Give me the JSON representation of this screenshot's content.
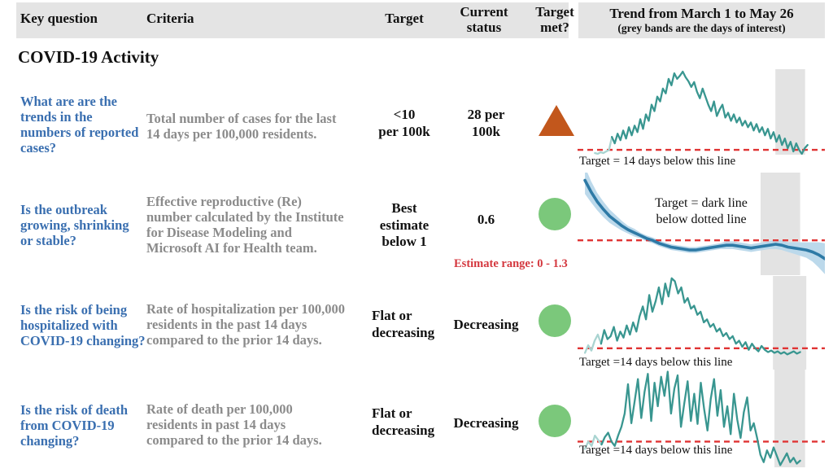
{
  "colors": {
    "header_bg": "#e4e4e4",
    "question_text": "#3a6fb0",
    "criteria_text": "#8b8b8b",
    "body_text": "#111111",
    "target_line_red": "#e03434",
    "estimate_range_red": "#d4373e",
    "trend_teal": "#399690",
    "trend_teal_faded": "#a9d4d1",
    "re_line_blue": "#2e7aa6",
    "re_band_blue": "#bcd9eb",
    "highlight_band_grey": "#e3e3e3",
    "met_green": "#7bc87b",
    "not_met_orange": "#c2571c"
  },
  "header": {
    "key_question": "Key question",
    "criteria": "Criteria",
    "target": "Target",
    "current_status": "Current\nstatus",
    "target_met": "Target\nmet?",
    "trend_title": "Trend from March 1 to May 26",
    "trend_subtitle": "(grey bands are the days of interest)"
  },
  "section_title": "COVID-19 Activity",
  "rows": [
    {
      "question": "What are are the\ntrends in the\nnumbers of reported\ncases?",
      "criteria": "Total number of cases for the last\n14 days per 100,000 residents.",
      "target": "<10\nper 100k",
      "status": "28 per\n100k",
      "target_met": false,
      "indicator": "orange-triangle-up"
    },
    {
      "question": "Is the outbreak\ngrowing, shrinking\nor stable?",
      "criteria": "Effective reproductive (Re)\nnumber calculated by the Institute\nfor Disease Modeling and\nMicrosoft AI for Health team.",
      "target": "Best\nestimate\nbelow 1",
      "status": "0.6",
      "status_note": "Estimate range: 0 - 1.3",
      "target_met": true,
      "indicator": "green-circle"
    },
    {
      "question": "Is the risk of being\nhospitalized with\nCOVID-19 changing?",
      "criteria": "Rate of hospitalization per 100,000\nresidents in the past 14 days\ncompared to the prior 14 days.",
      "target": "Flat or\ndecreasing",
      "status": "Decreasing",
      "target_met": true,
      "indicator": "green-circle"
    },
    {
      "question": "Is the risk of death\nfrom COVID-19\nchanging?",
      "criteria": "Rate of death per 100,000\nresidents in past 14 days\ncompared to the prior 14 days.",
      "target": "Flat or\ndecreasing",
      "status": "Decreasing",
      "target_met": true,
      "indicator": "green-circle"
    }
  ],
  "chart_data": [
    {
      "type": "line",
      "name": "reported_cases_trend",
      "caption": "Target = 14 days below this line",
      "x_range": [
        "March 1",
        "May 26"
      ],
      "target_line_value": 0,
      "units": "normalized (0 = red target line, 100 = chart max)",
      "ylim": [
        -6,
        100
      ],
      "x_start": 0.07,
      "x_end": 0.93,
      "highlight_band": [
        0.8,
        0.92
      ],
      "fade_points": 6,
      "line_color": "trend_teal",
      "fade_color": "trend_teal_faded",
      "stroke_width": 2.3,
      "series": [
        {
          "name": "cases_per_100k_last_14_days",
          "values": [
            -4,
            -5,
            -3,
            -4,
            -2,
            0,
            16,
            8,
            20,
            12,
            24,
            14,
            28,
            18,
            30,
            22,
            38,
            26,
            44,
            36,
            56,
            48,
            66,
            60,
            76,
            70,
            88,
            80,
            95,
            88,
            92,
            97,
            90,
            85,
            78,
            84,
            72,
            64,
            76,
            66,
            56,
            48,
            60,
            42,
            50,
            56,
            40,
            46,
            36,
            44,
            34,
            40,
            30,
            36,
            28,
            34,
            24,
            32,
            22,
            28,
            18,
            26,
            14,
            22,
            10,
            18,
            6,
            14,
            2,
            10,
            -2,
            8,
            0,
            -5,
            2,
            6
          ]
        }
      ]
    },
    {
      "type": "line",
      "name": "effective_reproduction_number_trend",
      "annotation": "Target = dark line\nbelow dotted line",
      "x_range": [
        "March 1",
        "May 26"
      ],
      "target_line_value": 0,
      "units": "normalized (0 = red dotted target line)",
      "ylim": [
        -36,
        70
      ],
      "x_start": 0.03,
      "x_end": 1.0,
      "highlight_band": [
        0.74,
        0.9
      ],
      "fade_points": 0,
      "line_color": "re_line_blue",
      "band_color": "re_band_blue",
      "stroke_width": 3.6,
      "series": [
        {
          "name": "re_best_estimate",
          "values": [
            62,
            50,
            40,
            32,
            25,
            20,
            15,
            11,
            8,
            5,
            2,
            0,
            -3,
            -5,
            -7,
            -8,
            -9,
            -10,
            -10,
            -9,
            -8,
            -7,
            -6,
            -5,
            -5,
            -6,
            -7,
            -8,
            -7,
            -6,
            -5,
            -4,
            -5,
            -7,
            -8,
            -9,
            -10,
            -12,
            -15,
            -19
          ]
        }
      ],
      "band_halfwidths": [
        14,
        11,
        9,
        8,
        7,
        6,
        5,
        4,
        4,
        3,
        3,
        3,
        3,
        3,
        3,
        3,
        3,
        3,
        3,
        3,
        3,
        3,
        3,
        4,
        4,
        4,
        4,
        4,
        4,
        4,
        4,
        5,
        5,
        5,
        6,
        7,
        8,
        10,
        13,
        16
      ]
    },
    {
      "type": "line",
      "name": "hospitalization_rate_trend",
      "caption": "Target =14 days below this line",
      "x_range": [
        "March 1",
        "May 26"
      ],
      "target_line_value": 0,
      "units": "normalized (0 = red target line, 100 = chart max)",
      "ylim": [
        -28,
        95
      ],
      "x_start": 0.03,
      "x_end": 0.9,
      "highlight_band": [
        0.79,
        0.925
      ],
      "fade_points": 5,
      "line_color": "trend_teal",
      "fade_color": "trend_teal_faded",
      "stroke_width": 2.3,
      "series": [
        {
          "name": "hospitalizations_per_100k_14_days",
          "values": [
            -6,
            4,
            -3,
            10,
            18,
            6,
            24,
            12,
            16,
            28,
            10,
            22,
            14,
            30,
            18,
            34,
            22,
            42,
            55,
            38,
            70,
            48,
            62,
            80,
            58,
            85,
            68,
            92,
            88,
            72,
            80,
            60,
            66,
            52,
            56,
            44,
            48,
            34,
            38,
            28,
            32,
            22,
            26,
            16,
            20,
            12,
            16,
            6,
            10,
            2,
            8,
            -2,
            6,
            0,
            -4,
            3,
            -2,
            -5,
            -3,
            -6,
            -4,
            -7,
            -5,
            -8,
            -6,
            -4,
            -7,
            -5
          ]
        }
      ]
    },
    {
      "type": "line",
      "name": "death_rate_trend",
      "caption": "Target =14 days below this line",
      "x_range": [
        "March 1",
        "May 26"
      ],
      "target_line_value": 0,
      "units": "normalized (0 = red target line, 100 = chart max)",
      "ylim": [
        -35,
        100
      ],
      "x_start": 0.03,
      "x_end": 0.9,
      "highlight_band": [
        0.796,
        0.92
      ],
      "fade_points": 5,
      "line_color": "trend_teal",
      "fade_color": "trend_teal_faded",
      "stroke_width": 2.3,
      "series": [
        {
          "name": "deaths_per_100k_14_days",
          "values": [
            -10,
            0,
            -6,
            8,
            2,
            -4,
            6,
            12,
            0,
            -6,
            8,
            20,
            38,
            78,
            25,
            55,
            85,
            32,
            68,
            92,
            28,
            80,
            48,
            88,
            62,
            95,
            38,
            72,
            90,
            20,
            52,
            82,
            28,
            65,
            24,
            80,
            44,
            15,
            58,
            85,
            35,
            70,
            20,
            48,
            10,
            65,
            30,
            5,
            40,
            60,
            15,
            25,
            5,
            -18,
            -28,
            -12,
            -22,
            -8,
            -20,
            -32,
            -24,
            -16,
            -28,
            -22,
            -30,
            -26
          ]
        }
      ]
    }
  ]
}
